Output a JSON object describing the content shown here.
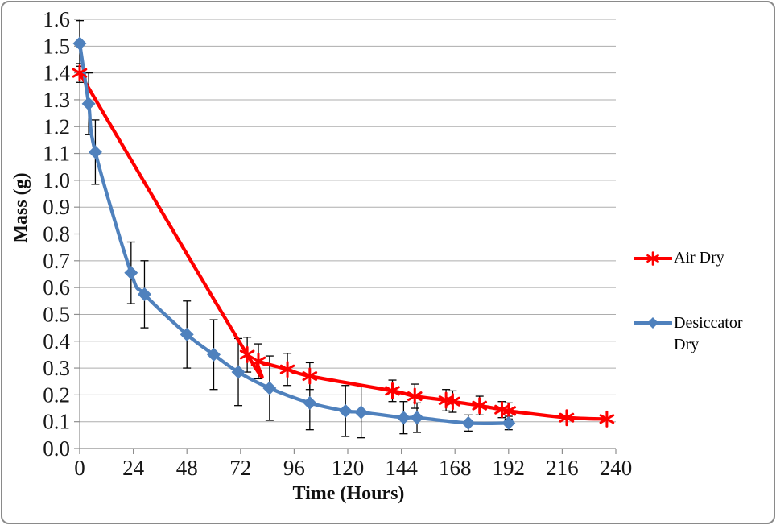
{
  "frame": {
    "background": "#FFFFFF",
    "border_color": "#8A8A8A"
  },
  "chart_data": {
    "type": "line",
    "title": "",
    "xlabel": "Time (Hours)",
    "ylabel": "Mass (g)",
    "xlim": [
      0,
      240
    ],
    "ylim": [
      0.0,
      1.6
    ],
    "x_ticks": [
      0,
      24,
      48,
      72,
      96,
      120,
      144,
      168,
      192,
      216,
      240
    ],
    "y_ticks": [
      "0.0",
      "0.1",
      "0.2",
      "0.3",
      "0.4",
      "0.5",
      "0.6",
      "0.7",
      "0.8",
      "0.9",
      "1.0",
      "1.1",
      "1.2",
      "1.3",
      "1.4",
      "1.5",
      "1.6"
    ],
    "grid": true,
    "smoothed_lines": true,
    "error_bars": true,
    "legend_position": "right",
    "colors": {
      "gridline": "#ADADAD",
      "axis": "#8E8E8E",
      "error_bar": "#000000",
      "tick_text": "#171717"
    },
    "points_format": "[time_hours, mass_g, error_bar_plus_minus]",
    "series": [
      {
        "name": "Air Dry",
        "color": "#FE0000",
        "marker": "asterisk",
        "points": [
          [
            0,
            1.4,
            0.035
          ],
          [
            75,
            0.35,
            0.065
          ],
          [
            80,
            0.325,
            0.065
          ],
          [
            93,
            0.295,
            0.06
          ],
          [
            103,
            0.27,
            0.05
          ],
          [
            140,
            0.215,
            0.04
          ],
          [
            150,
            0.195,
            0.045
          ],
          [
            164,
            0.18,
            0.04
          ],
          [
            167,
            0.175,
            0.04
          ],
          [
            179,
            0.16,
            0.035
          ],
          [
            189,
            0.145,
            0.03
          ],
          [
            192,
            0.14,
            0.03
          ],
          [
            218,
            0.115,
            0
          ],
          [
            236,
            0.11,
            0
          ]
        ]
      },
      {
        "name": "Desiccator Dry",
        "color": "#4F81BD",
        "marker": "diamond",
        "points": [
          [
            0,
            1.51,
            0.085
          ],
          [
            4,
            1.285,
            0.115
          ],
          [
            7,
            1.105,
            0.12
          ],
          [
            23,
            0.655,
            0.115
          ],
          [
            29,
            0.575,
            0.125
          ],
          [
            48,
            0.425,
            0.125
          ],
          [
            60,
            0.35,
            0.13
          ],
          [
            71,
            0.285,
            0.125
          ],
          [
            85,
            0.225,
            0.12
          ],
          [
            103,
            0.17,
            0.1
          ],
          [
            119,
            0.14,
            0.095
          ],
          [
            126,
            0.135,
            0.095
          ],
          [
            145,
            0.115,
            0.06
          ],
          [
            151,
            0.115,
            0.055
          ],
          [
            174,
            0.095,
            0.03
          ],
          [
            192,
            0.095,
            0.025
          ]
        ]
      }
    ]
  }
}
